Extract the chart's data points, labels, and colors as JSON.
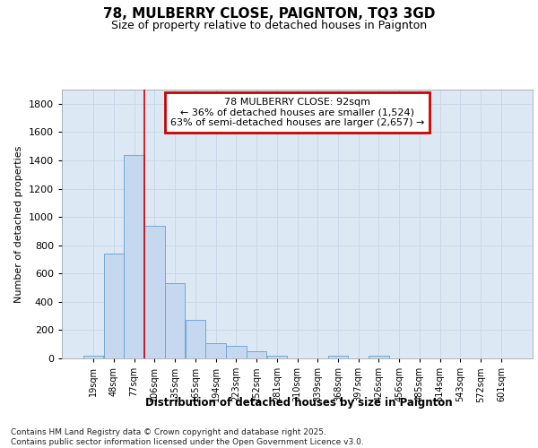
{
  "title": "78, MULBERRY CLOSE, PAIGNTON, TQ3 3GD",
  "subtitle": "Size of property relative to detached houses in Paignton",
  "xlabel": "Distribution of detached houses by size in Paignton",
  "ylabel": "Number of detached properties",
  "categories": [
    "19sqm",
    "48sqm",
    "77sqm",
    "106sqm",
    "135sqm",
    "165sqm",
    "194sqm",
    "223sqm",
    "252sqm",
    "281sqm",
    "310sqm",
    "339sqm",
    "368sqm",
    "397sqm",
    "426sqm",
    "456sqm",
    "485sqm",
    "514sqm",
    "543sqm",
    "572sqm",
    "601sqm"
  ],
  "values": [
    20,
    740,
    1435,
    940,
    530,
    270,
    105,
    90,
    48,
    20,
    0,
    0,
    16,
    0,
    16,
    0,
    0,
    0,
    0,
    0,
    0
  ],
  "bar_color": "#c5d8f0",
  "bar_edge_color": "#6fa8d4",
  "red_line_x": 2.5,
  "annotation_title": "78 MULBERRY CLOSE: 92sqm",
  "annotation_line1": "← 36% of detached houses are smaller (1,524)",
  "annotation_line2": "63% of semi-detached houses are larger (2,657) →",
  "annotation_edge_color": "#cc0000",
  "ylim": [
    0,
    1900
  ],
  "yticks": [
    0,
    200,
    400,
    600,
    800,
    1000,
    1200,
    1400,
    1600,
    1800
  ],
  "grid_color": "#c8d8e8",
  "bg_color": "#dce9f5",
  "footnote1": "Contains HM Land Registry data © Crown copyright and database right 2025.",
  "footnote2": "Contains public sector information licensed under the Open Government Licence v3.0."
}
